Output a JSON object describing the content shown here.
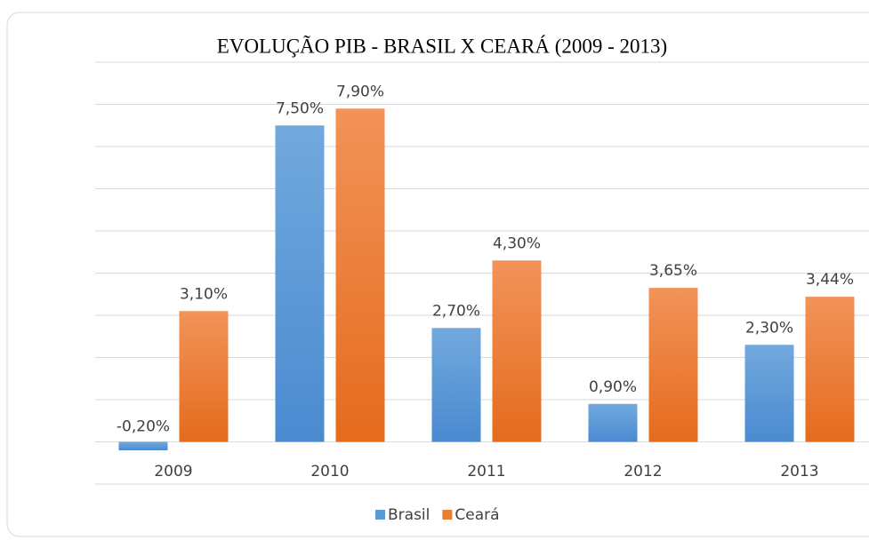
{
  "chart_data": {
    "type": "bar",
    "title": "EVOLUÇÃO PIB - BRASIL X CEARÁ (2009 - 2013)",
    "categories": [
      "2009",
      "2010",
      "2011",
      "2012",
      "2013"
    ],
    "series": [
      {
        "name": "Brasil",
        "color": "#5b9bd5",
        "values": [
          -0.2,
          7.5,
          2.7,
          0.9,
          2.3
        ],
        "value_labels": [
          "-0,20%",
          "7,50%",
          "2,70%",
          "0,90%",
          "2,30%"
        ]
      },
      {
        "name": "Ceará",
        "color": "#ed7d31",
        "values": [
          3.1,
          7.9,
          4.3,
          3.65,
          3.44
        ],
        "value_labels": [
          "3,10%",
          "7,90%",
          "4,30%",
          "3,65%",
          "3,44%"
        ]
      }
    ],
    "ylim": [
      -1,
      9
    ],
    "yticks": [
      -1,
      0,
      1,
      2,
      3,
      4,
      5,
      6,
      7,
      8,
      9
    ],
    "grid": true,
    "legend": "bottom"
  }
}
